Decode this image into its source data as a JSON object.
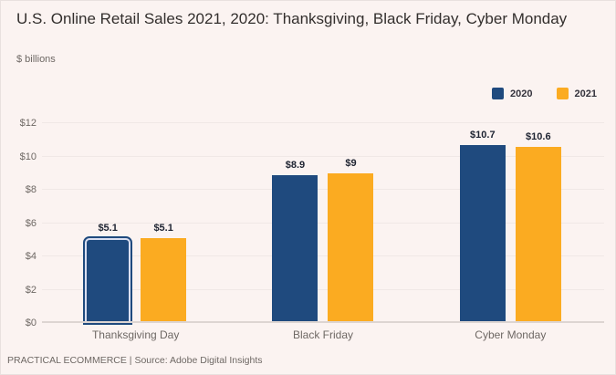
{
  "header": {
    "title": "U.S. Online Retail Sales 2021, 2020: Thanksgiving, Black Friday, Cyber Monday",
    "subtitle": "$ billions"
  },
  "footer": {
    "text": "PRACTICAL ECOMMERCE | Source: Adobe Digital Insights"
  },
  "colors": {
    "background": "#fbf3f1",
    "series_2020": "#1f4a7e",
    "series_2021": "#fbab21",
    "gridline": "#f0e8e6",
    "axis_line": "#ddd5d2",
    "selected_ring": "#dadff1"
  },
  "chart_data": {
    "type": "bar",
    "title": "U.S. Online Retail Sales 2021, 2020: Thanksgiving, Black Friday, Cyber Monday",
    "ylabel": "$ billions",
    "categories": [
      "Thanksgiving Day",
      "Black Friday",
      "Cyber Monday"
    ],
    "series": [
      {
        "name": "2020",
        "color": "#1f4a7e",
        "values": [
          5.1,
          8.9,
          10.7
        ],
        "labels": [
          "$5.1",
          "$8.9",
          "$10.7"
        ]
      },
      {
        "name": "2021",
        "color": "#fbab21",
        "values": [
          5.1,
          9,
          10.6
        ],
        "labels": [
          "$5.1",
          "$9",
          "$10.6"
        ]
      }
    ],
    "ylim": [
      0,
      12
    ],
    "yticks": [
      {
        "value": 0,
        "label": "$0"
      },
      {
        "value": 2,
        "label": "$2"
      },
      {
        "value": 4,
        "label": "$4"
      },
      {
        "value": 6,
        "label": "$6"
      },
      {
        "value": 8,
        "label": "$8"
      },
      {
        "value": 10,
        "label": "$10"
      },
      {
        "value": 12,
        "label": "$12"
      }
    ],
    "grid": "horizontal",
    "legend_position": "top-right",
    "selected_bar": {
      "series_index": 0,
      "category_index": 0
    }
  }
}
